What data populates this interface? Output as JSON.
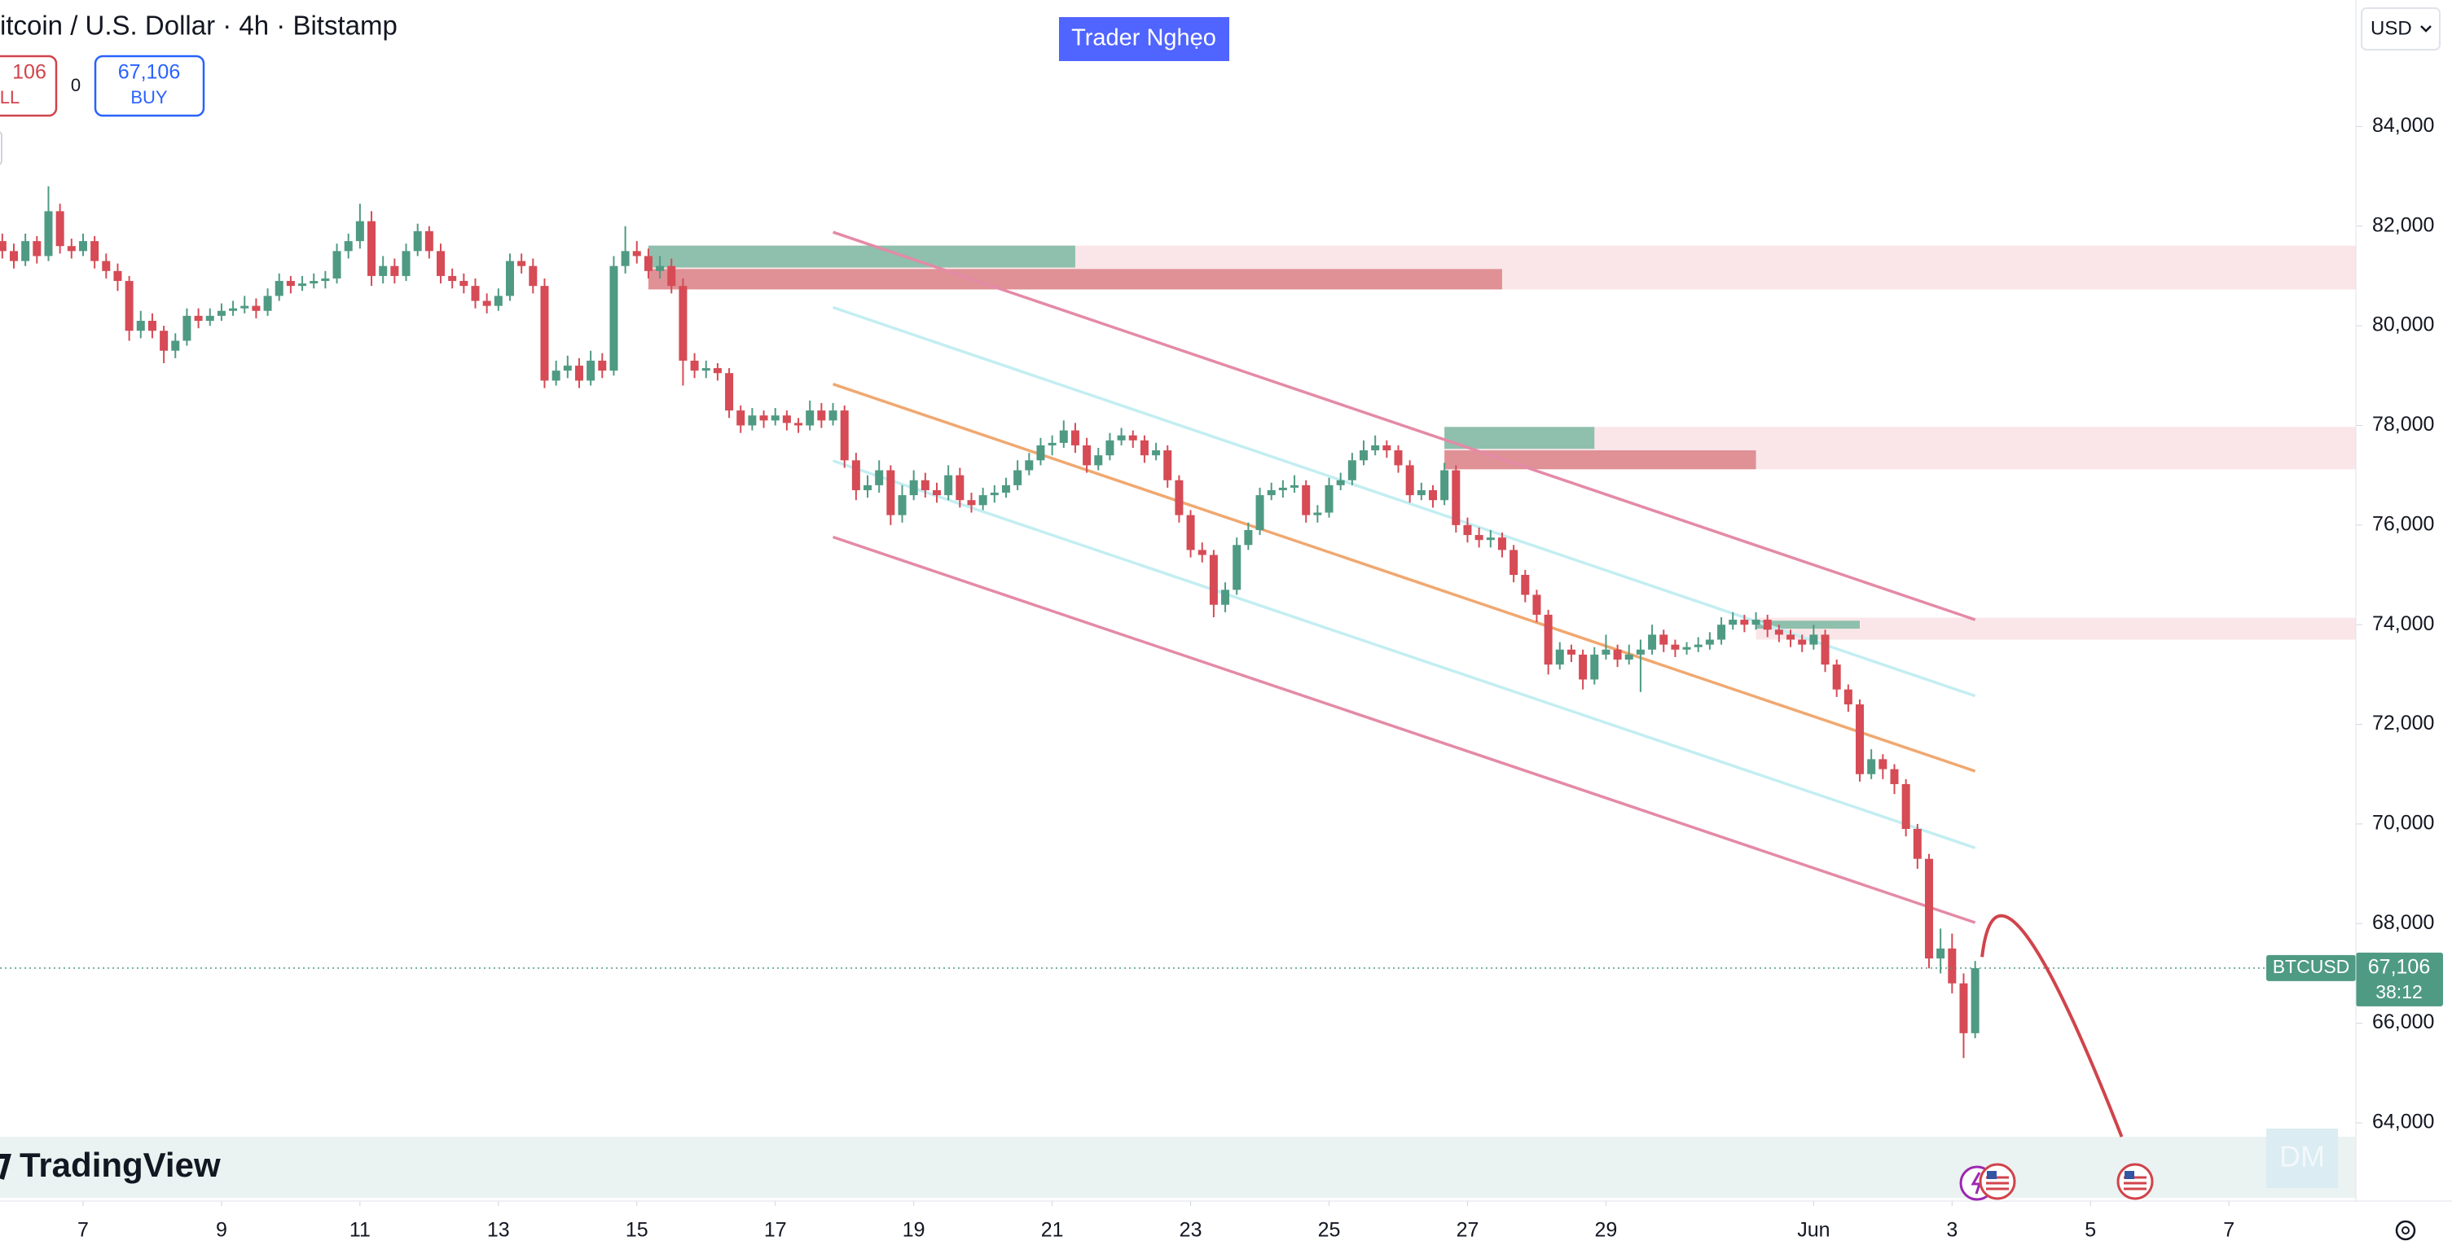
{
  "chart_data": {
    "type": "candlestick",
    "title": "itcoin / U.S. Dollar · 4h · Bitstamp",
    "symbol": "BTCUSD",
    "currency": "USD",
    "watermark": "Trader Nghẹo",
    "logo": "TradingView",
    "signature": "DM",
    "up_color": "#4f9a83",
    "down_color": "#d64b55",
    "candles": [
      [
        81700,
        81850,
        81350,
        81500
      ],
      [
        81500,
        81650,
        81150,
        81300
      ],
      [
        81300,
        81850,
        81200,
        81700
      ],
      [
        81700,
        81800,
        81250,
        81400
      ],
      [
        81400,
        82800,
        81300,
        82300
      ],
      [
        82300,
        82450,
        81450,
        81600
      ],
      [
        81600,
        81750,
        81350,
        81500
      ],
      [
        81500,
        81850,
        81400,
        81700
      ],
      [
        81700,
        81800,
        81150,
        81300
      ],
      [
        81300,
        81450,
        80950,
        81100
      ],
      [
        81100,
        81250,
        80700,
        80900
      ],
      [
        80900,
        81000,
        79700,
        79900
      ],
      [
        79900,
        80300,
        79750,
        80100
      ],
      [
        80100,
        80250,
        79750,
        79900
      ],
      [
        79900,
        80000,
        79250,
        79500
      ],
      [
        79500,
        79850,
        79350,
        79700
      ],
      [
        79700,
        80350,
        79600,
        80200
      ],
      [
        80200,
        80350,
        79950,
        80100
      ],
      [
        80100,
        80350,
        80000,
        80200
      ],
      [
        80200,
        80450,
        80100,
        80300
      ],
      [
        80300,
        80500,
        80200,
        80350
      ],
      [
        80350,
        80600,
        80250,
        80400
      ],
      [
        80400,
        80550,
        80150,
        80300
      ],
      [
        80300,
        80750,
        80200,
        80600
      ],
      [
        80600,
        81050,
        80500,
        80900
      ],
      [
        80900,
        81000,
        80650,
        80800
      ],
      [
        80800,
        81000,
        80700,
        80850
      ],
      [
        80850,
        81050,
        80750,
        80900
      ],
      [
        80900,
        81100,
        80750,
        80950
      ],
      [
        80950,
        81650,
        80850,
        81500
      ],
      [
        81500,
        81850,
        81350,
        81700
      ],
      [
        81700,
        82450,
        81550,
        82100
      ],
      [
        82100,
        82300,
        80800,
        81000
      ],
      [
        81000,
        81400,
        80850,
        81200
      ],
      [
        81200,
        81350,
        80850,
        81000
      ],
      [
        81000,
        81650,
        80900,
        81500
      ],
      [
        81500,
        82050,
        81400,
        81900
      ],
      [
        81900,
        82000,
        81350,
        81500
      ],
      [
        81500,
        81650,
        80850,
        81000
      ],
      [
        81000,
        81150,
        80750,
        80900
      ],
      [
        80900,
        81050,
        80650,
        80800
      ],
      [
        80800,
        80950,
        80350,
        80500
      ],
      [
        80500,
        80650,
        80250,
        80400
      ],
      [
        80400,
        80750,
        80300,
        80600
      ],
      [
        80600,
        81450,
        80500,
        81300
      ],
      [
        81300,
        81450,
        81050,
        81200
      ],
      [
        81200,
        81350,
        80650,
        80800
      ],
      [
        80800,
        80950,
        78750,
        78900
      ],
      [
        78900,
        79300,
        78800,
        79100
      ],
      [
        79100,
        79400,
        78950,
        79200
      ],
      [
        79200,
        79350,
        78750,
        78900
      ],
      [
        78900,
        79500,
        78800,
        79300
      ],
      [
        79300,
        79450,
        78950,
        79100
      ],
      [
        79100,
        81400,
        79000,
        81200
      ],
      [
        81200,
        82000,
        81050,
        81500
      ],
      [
        81500,
        81700,
        81250,
        81400
      ],
      [
        81400,
        81550,
        80950,
        81100
      ],
      [
        81100,
        81400,
        80950,
        81200
      ],
      [
        81200,
        81350,
        80650,
        80800
      ],
      [
        80800,
        80950,
        78800,
        79300
      ],
      [
        79300,
        79450,
        78950,
        79100
      ],
      [
        79100,
        79300,
        78950,
        79150
      ],
      [
        79150,
        79250,
        78900,
        79050
      ],
      [
        79050,
        79150,
        78150,
        78300
      ],
      [
        78300,
        78400,
        77850,
        78000
      ],
      [
        78000,
        78350,
        77900,
        78200
      ],
      [
        78200,
        78300,
        77950,
        78100
      ],
      [
        78100,
        78350,
        78000,
        78200
      ],
      [
        78200,
        78300,
        77900,
        78050
      ],
      [
        78050,
        78150,
        77850,
        78000
      ],
      [
        78000,
        78500,
        77900,
        78300
      ],
      [
        78300,
        78450,
        77950,
        78100
      ],
      [
        78100,
        78450,
        78000,
        78300
      ],
      [
        78300,
        78400,
        77150,
        77300
      ],
      [
        77300,
        77450,
        76500,
        76700
      ],
      [
        76700,
        77000,
        76550,
        76800
      ],
      [
        76800,
        77300,
        76650,
        77100
      ],
      [
        77100,
        77200,
        76000,
        76200
      ],
      [
        76200,
        76800,
        76050,
        76600
      ],
      [
        76600,
        77100,
        76500,
        76900
      ],
      [
        76900,
        77050,
        76550,
        76700
      ],
      [
        76700,
        76850,
        76450,
        76600
      ],
      [
        76600,
        77200,
        76500,
        77000
      ],
      [
        77000,
        77150,
        76350,
        76500
      ],
      [
        76500,
        76650,
        76250,
        76400
      ],
      [
        76400,
        76750,
        76300,
        76600
      ],
      [
        76600,
        76800,
        76450,
        76650
      ],
      [
        76650,
        76950,
        76550,
        76800
      ],
      [
        76800,
        77300,
        76700,
        77100
      ],
      [
        77100,
        77450,
        77000,
        77300
      ],
      [
        77300,
        77750,
        77200,
        77600
      ],
      [
        77600,
        77800,
        77400,
        77650
      ],
      [
        77650,
        78100,
        77550,
        77900
      ],
      [
        77900,
        78050,
        77450,
        77600
      ],
      [
        77600,
        77750,
        77050,
        77200
      ],
      [
        77200,
        77550,
        77100,
        77400
      ],
      [
        77400,
        77850,
        77300,
        77700
      ],
      [
        77700,
        77950,
        77600,
        77800
      ],
      [
        77800,
        77900,
        77550,
        77700
      ],
      [
        77700,
        77800,
        77250,
        77400
      ],
      [
        77400,
        77650,
        77300,
        77500
      ],
      [
        77500,
        77600,
        76750,
        76900
      ],
      [
        76900,
        77000,
        76050,
        76200
      ],
      [
        76200,
        76300,
        75350,
        75500
      ],
      [
        75500,
        75650,
        75250,
        75400
      ],
      [
        75400,
        75500,
        74150,
        74400
      ],
      [
        74400,
        74850,
        74250,
        74700
      ],
      [
        74700,
        75750,
        74600,
        75600
      ],
      [
        75600,
        76050,
        75500,
        75900
      ],
      [
        75900,
        76750,
        75800,
        76600
      ],
      [
        76600,
        76850,
        76500,
        76700
      ],
      [
        76700,
        76900,
        76550,
        76750
      ],
      [
        76750,
        77000,
        76650,
        76800
      ],
      [
        76800,
        76900,
        76050,
        76200
      ],
      [
        76200,
        76400,
        76050,
        76250
      ],
      [
        76250,
        76950,
        76150,
        76800
      ],
      [
        76800,
        77050,
        76700,
        76900
      ],
      [
        76900,
        77450,
        76800,
        77300
      ],
      [
        77300,
        77700,
        77200,
        77500
      ],
      [
        77500,
        77800,
        77400,
        77600
      ],
      [
        77600,
        77700,
        77350,
        77500
      ],
      [
        77500,
        77600,
        77050,
        77200
      ],
      [
        77200,
        77300,
        76450,
        76600
      ],
      [
        76600,
        76850,
        76500,
        76700
      ],
      [
        76700,
        76800,
        76350,
        76500
      ],
      [
        76500,
        77250,
        76400,
        77100
      ],
      [
        77100,
        77200,
        75850,
        76000
      ],
      [
        76000,
        76150,
        75650,
        75800
      ],
      [
        75800,
        75950,
        75550,
        75700
      ],
      [
        75700,
        75900,
        75550,
        75750
      ],
      [
        75750,
        75850,
        75350,
        75500
      ],
      [
        75500,
        75600,
        74850,
        75000
      ],
      [
        75000,
        75100,
        74450,
        74600
      ],
      [
        74600,
        74700,
        74050,
        74200
      ],
      [
        74200,
        74300,
        73000,
        73200
      ],
      [
        73200,
        73650,
        73100,
        73500
      ],
      [
        73500,
        73600,
        73250,
        73400
      ],
      [
        73400,
        73500,
        72700,
        72900
      ],
      [
        72900,
        73550,
        72800,
        73400
      ],
      [
        73400,
        73800,
        73300,
        73500
      ],
      [
        73500,
        73600,
        73150,
        73300
      ],
      [
        73300,
        73600,
        73200,
        73400
      ],
      [
        73400,
        73700,
        72650,
        73500
      ],
      [
        73500,
        74000,
        73400,
        73800
      ],
      [
        73800,
        73900,
        73450,
        73600
      ],
      [
        73600,
        73700,
        73350,
        73500
      ],
      [
        73500,
        73650,
        73400,
        73550
      ],
      [
        73550,
        73750,
        73450,
        73600
      ],
      [
        73600,
        73850,
        73500,
        73700
      ],
      [
        73700,
        74150,
        73600,
        74000
      ],
      [
        74000,
        74250,
        73900,
        74100
      ],
      [
        74100,
        74200,
        73850,
        74000
      ],
      [
        74000,
        74250,
        73900,
        74100
      ],
      [
        74100,
        74200,
        73750,
        73900
      ],
      [
        73900,
        74000,
        73650,
        73800
      ],
      [
        73800,
        73900,
        73550,
        73700
      ],
      [
        73700,
        73800,
        73450,
        73600
      ],
      [
        73600,
        74000,
        73500,
        73800
      ],
      [
        73800,
        73900,
        73050,
        73200
      ],
      [
        73200,
        73300,
        72550,
        72700
      ],
      [
        72700,
        72800,
        72250,
        72400
      ],
      [
        72400,
        72500,
        70850,
        71000
      ],
      [
        71000,
        71500,
        70900,
        71300
      ],
      [
        71300,
        71400,
        70900,
        71100
      ],
      [
        71100,
        71200,
        70600,
        70800
      ],
      [
        70800,
        70900,
        69750,
        69900
      ],
      [
        69900,
        70000,
        69100,
        69300
      ],
      [
        69300,
        69400,
        67100,
        67300
      ],
      [
        67300,
        67900,
        67000,
        67500
      ],
      [
        67500,
        67800,
        66600,
        66800
      ],
      [
        66800,
        67000,
        65300,
        65800
      ],
      [
        65800,
        67250,
        65700,
        67106
      ]
    ],
    "xlim": [
      -0.2,
      204
    ],
    "xticks": [
      {
        "value": 7,
        "label": "7"
      },
      {
        "value": 19,
        "label": "9"
      },
      {
        "value": 31,
        "label": "11"
      },
      {
        "value": 43,
        "label": "13"
      },
      {
        "value": 55,
        "label": "15"
      },
      {
        "value": 67,
        "label": "17"
      },
      {
        "value": 79,
        "label": "19"
      },
      {
        "value": 91,
        "label": "21"
      },
      {
        "value": 103,
        "label": "23"
      },
      {
        "value": 115,
        "label": "25"
      },
      {
        "value": 127,
        "label": "27"
      },
      {
        "value": 139,
        "label": "29"
      },
      {
        "value": 157,
        "label": "Jun"
      },
      {
        "value": 169,
        "label": "3"
      },
      {
        "value": 181,
        "label": "5"
      },
      {
        "value": 193,
        "label": "7"
      }
    ],
    "ylim": [
      62430,
      86540
    ],
    "yticks": [
      {
        "value": 64000,
        "label": "64,000"
      },
      {
        "value": 66000,
        "label": "66,000"
      },
      {
        "value": 68000,
        "label": "68,000"
      },
      {
        "value": 70000,
        "label": "70,000"
      },
      {
        "value": 72000,
        "label": "72,000"
      },
      {
        "value": 74000,
        "label": "74,000"
      },
      {
        "value": 76000,
        "label": "76,000"
      },
      {
        "value": 78000,
        "label": "78,000"
      },
      {
        "value": 80000,
        "label": "80,000"
      },
      {
        "value": 82000,
        "label": "82,000"
      },
      {
        "value": 84000,
        "label": "84,000"
      }
    ],
    "last_price": {
      "value": 67106,
      "label": "67,106"
    },
    "countdown": "38:12",
    "zones": [
      {
        "from": 56,
        "to": 204,
        "low": 80730,
        "high": 81610,
        "color": "#fae6e8"
      },
      {
        "from": 56,
        "to": 93,
        "low": 81170,
        "high": 81610,
        "color": "#8fbfad"
      },
      {
        "from": 56,
        "to": 130,
        "low": 80730,
        "high": 81140,
        "color": "#df9196"
      },
      {
        "from": 125,
        "to": 204,
        "low": 77120,
        "high": 77970,
        "color": "#fae6e8"
      },
      {
        "from": 125,
        "to": 138,
        "low": 77530,
        "high": 77970,
        "color": "#8fbfad"
      },
      {
        "from": 125,
        "to": 152,
        "low": 77120,
        "high": 77500,
        "color": "#df9196"
      },
      {
        "from": 152,
        "to": 204,
        "low": 73700,
        "high": 74140,
        "color": "#fae6e8"
      },
      {
        "from": 152,
        "to": 161,
        "low": 73920,
        "high": 74080,
        "color": "#8fbfad"
      }
    ],
    "lines": [
      {
        "x": [
          72,
          171
        ],
        "y": [
          81880,
          74100
        ],
        "color": "#e48aa6"
      },
      {
        "x": [
          72,
          171
        ],
        "y": [
          80370,
          72570
        ],
        "color": "#c3eef2"
      },
      {
        "x": [
          72,
          171
        ],
        "y": [
          78830,
          71060
        ],
        "color": "#f0a870"
      },
      {
        "x": [
          72,
          171
        ],
        "y": [
          77290,
          69520
        ],
        "color": "#c3eef2"
      },
      {
        "x": [
          72,
          171
        ],
        "y": [
          75760,
          68020
        ],
        "color": "#e48aa6"
      }
    ],
    "projection": {
      "x": [
        171.6,
        175.3,
        183.7
      ],
      "y": [
        67330,
        67800,
        63720
      ],
      "color": "#d0444c"
    }
  },
  "trade_panel": {
    "sell_price": "106",
    "sell_label": "LL",
    "spread": 0,
    "buy_price": "67,106",
    "buy_label": "BUY"
  }
}
